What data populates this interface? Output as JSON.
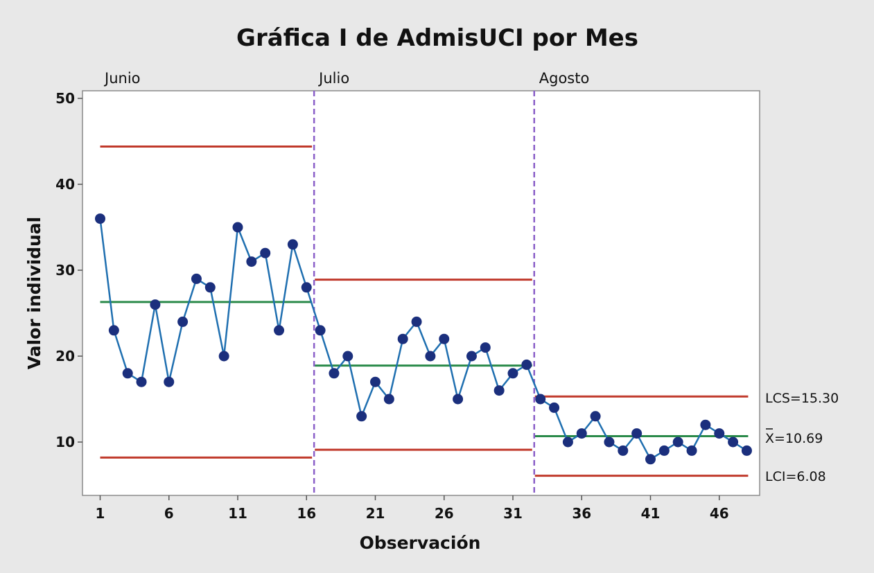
{
  "chart_data": {
    "type": "line",
    "title": "Gráfica I de AdmisUCI por Mes",
    "xlabel": "Observación",
    "ylabel": "Valor individual",
    "ylim": [
      3.8,
      50
    ],
    "xlim": [
      0,
      49.5
    ],
    "yticks": [
      10,
      20,
      30,
      40,
      50
    ],
    "xticks": [
      1,
      6,
      11,
      16,
      21,
      26,
      31,
      36,
      41,
      46
    ],
    "phases": [
      {
        "name": "Junio",
        "start": 1,
        "end": 16,
        "ucl": 44.4,
        "mean": 26.3,
        "lcl": 8.2
      },
      {
        "name": "Julio",
        "start": 17,
        "end": 32,
        "ucl": 28.9,
        "mean": 18.9,
        "lcl": 9.1
      },
      {
        "name": "Agosto",
        "start": 33,
        "end": 48,
        "ucl": 15.3,
        "mean": 10.69,
        "lcl": 6.08
      }
    ],
    "series": [
      {
        "name": "AdmisUCI",
        "x": [
          1,
          2,
          3,
          4,
          5,
          6,
          7,
          8,
          9,
          10,
          11,
          12,
          13,
          14,
          15,
          16,
          17,
          18,
          19,
          20,
          21,
          22,
          23,
          24,
          25,
          26,
          27,
          28,
          29,
          30,
          31,
          32,
          33,
          34,
          35,
          36,
          37,
          38,
          39,
          40,
          41,
          42,
          43,
          44,
          45,
          46,
          47,
          48
        ],
        "values": [
          36,
          23,
          18,
          17,
          26,
          17,
          24,
          29,
          28,
          20,
          35,
          31,
          32,
          23,
          33,
          28,
          23,
          18,
          20,
          13,
          17,
          15,
          22,
          24,
          20,
          22,
          15,
          20,
          21,
          16,
          18,
          19,
          15,
          14,
          10,
          11,
          13,
          10,
          9,
          11,
          8,
          9,
          10,
          9,
          12,
          11,
          10,
          9
        ]
      }
    ],
    "limit_labels": {
      "ucl": "LCS=15.30",
      "mean_symbol": "X",
      "mean": "=10.69",
      "lcl": "LCI=6.08"
    },
    "colors": {
      "series": "#1f6fb0",
      "marker": "#1b2f7d",
      "limits": "#c0392b",
      "mean": "#2a8a4a",
      "phase_divider": "#8a5fc8"
    }
  }
}
